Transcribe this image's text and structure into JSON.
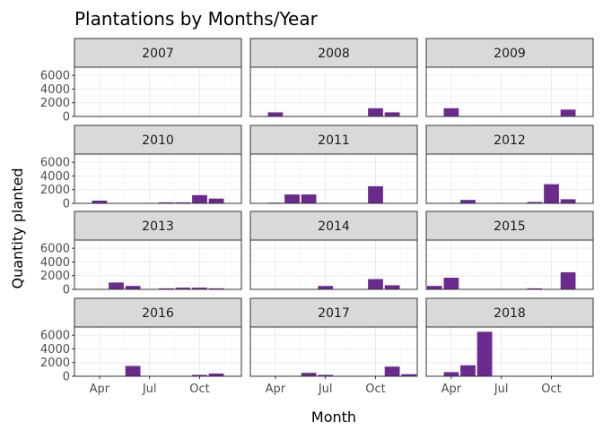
{
  "chart_data": {
    "type": "bar",
    "title": "Plantations by Months/Year",
    "xlabel": "Month",
    "ylabel": "Quantity planted",
    "x_range_months": [
      2.5,
      12.5
    ],
    "x_ticks": [
      {
        "month": 4,
        "label": "Apr"
      },
      {
        "month": 7,
        "label": "Jul"
      },
      {
        "month": 10,
        "label": "Oct"
      }
    ],
    "y_ticks": [
      0,
      2000,
      4000,
      6000
    ],
    "ylim": [
      0,
      7200
    ],
    "bar_color": "#6a2a8e",
    "strip_fill": "#d9d9d9",
    "grid": true,
    "facets": [
      {
        "label": "2007",
        "bars": []
      },
      {
        "label": "2008",
        "bars": [
          {
            "month": 4,
            "value": 600
          },
          {
            "month": 10,
            "value": 1200
          },
          {
            "month": 11,
            "value": 600
          }
        ]
      },
      {
        "label": "2009",
        "bars": [
          {
            "month": 4,
            "value": 1200
          },
          {
            "month": 11,
            "value": 1000
          }
        ]
      },
      {
        "label": "2010",
        "bars": [
          {
            "month": 4,
            "value": 400
          },
          {
            "month": 8,
            "value": 150
          },
          {
            "month": 9,
            "value": 150
          },
          {
            "month": 10,
            "value": 1200
          },
          {
            "month": 11,
            "value": 700
          }
        ]
      },
      {
        "label": "2011",
        "bars": [
          {
            "month": 4,
            "value": 100
          },
          {
            "month": 5,
            "value": 1300
          },
          {
            "month": 6,
            "value": 1300
          },
          {
            "month": 10,
            "value": 2500
          }
        ]
      },
      {
        "label": "2012",
        "bars": [
          {
            "month": 5,
            "value": 500
          },
          {
            "month": 9,
            "value": 200
          },
          {
            "month": 10,
            "value": 2800
          },
          {
            "month": 11,
            "value": 600
          }
        ]
      },
      {
        "label": "2013",
        "bars": [
          {
            "month": 5,
            "value": 1000
          },
          {
            "month": 6,
            "value": 500
          },
          {
            "month": 8,
            "value": 150
          },
          {
            "month": 9,
            "value": 250
          },
          {
            "month": 10,
            "value": 250
          },
          {
            "month": 11,
            "value": 150
          }
        ]
      },
      {
        "label": "2014",
        "bars": [
          {
            "month": 7,
            "value": 500
          },
          {
            "month": 10,
            "value": 1500
          },
          {
            "month": 11,
            "value": 600
          }
        ]
      },
      {
        "label": "2015",
        "bars": [
          {
            "month": 3,
            "value": 500
          },
          {
            "month": 4,
            "value": 1700
          },
          {
            "month": 9,
            "value": 150
          },
          {
            "month": 11,
            "value": 2500
          }
        ]
      },
      {
        "label": "2016",
        "bars": [
          {
            "month": 6,
            "value": 1500
          },
          {
            "month": 10,
            "value": 200
          },
          {
            "month": 11,
            "value": 400
          }
        ]
      },
      {
        "label": "2017",
        "bars": [
          {
            "month": 6,
            "value": 500
          },
          {
            "month": 7,
            "value": 200
          },
          {
            "month": 11,
            "value": 1400
          },
          {
            "month": 12,
            "value": 300
          }
        ]
      },
      {
        "label": "2018",
        "bars": [
          {
            "month": 4,
            "value": 600
          },
          {
            "month": 5,
            "value": 1600
          },
          {
            "month": 6,
            "value": 6500
          }
        ]
      }
    ]
  }
}
